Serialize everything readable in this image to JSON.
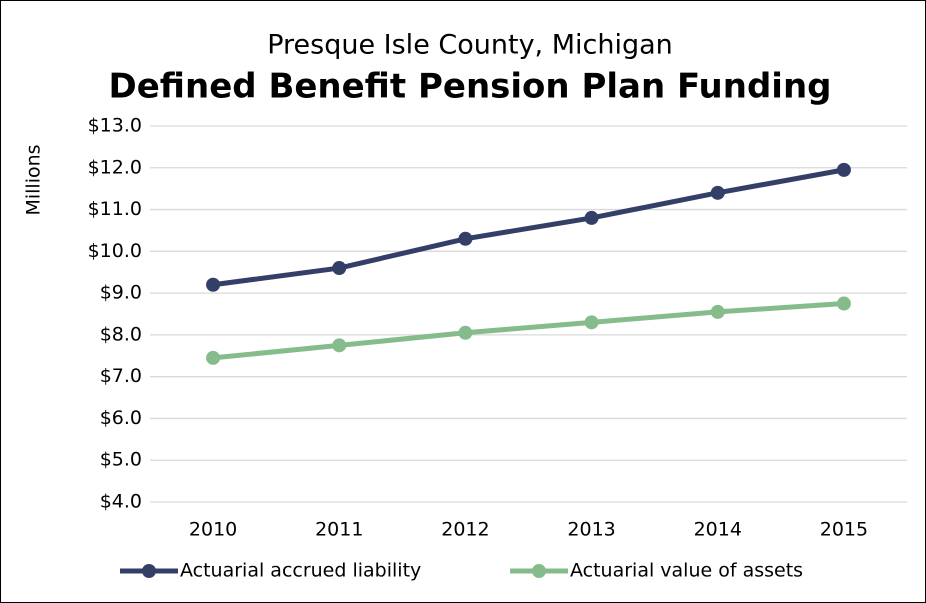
{
  "chart_data": {
    "type": "line",
    "subtitle": "Presque Isle County, Michigan",
    "title": "Defined Benefit Pension Plan Funding",
    "y_label": "Millions",
    "categories": [
      "2010",
      "2011",
      "2012",
      "2013",
      "2014",
      "2015"
    ],
    "series": [
      {
        "name": "Actuarial accrued liability",
        "color": "#333f66",
        "values": [
          9.2,
          9.6,
          10.3,
          10.8,
          11.4,
          11.95
        ]
      },
      {
        "name": "Actuarial value of assets",
        "color": "#86bc8c",
        "values": [
          7.45,
          7.75,
          8.05,
          8.3,
          8.55,
          8.75
        ]
      }
    ],
    "ylim": [
      4,
      13
    ],
    "yticks": [
      {
        "value": 4,
        "label": "$4.0"
      },
      {
        "value": 5,
        "label": "$5.0"
      },
      {
        "value": 6,
        "label": "$6.0"
      },
      {
        "value": 7,
        "label": "$7.0"
      },
      {
        "value": 8,
        "label": "$8.0"
      },
      {
        "value": 9,
        "label": "$9.0"
      },
      {
        "value": 10,
        "label": "$10.0"
      },
      {
        "value": 11,
        "label": "$11.0"
      },
      {
        "value": 12,
        "label": "$12.0"
      },
      {
        "value": 13,
        "label": "$13.0"
      }
    ],
    "grid": true,
    "legend": "bottom"
  }
}
